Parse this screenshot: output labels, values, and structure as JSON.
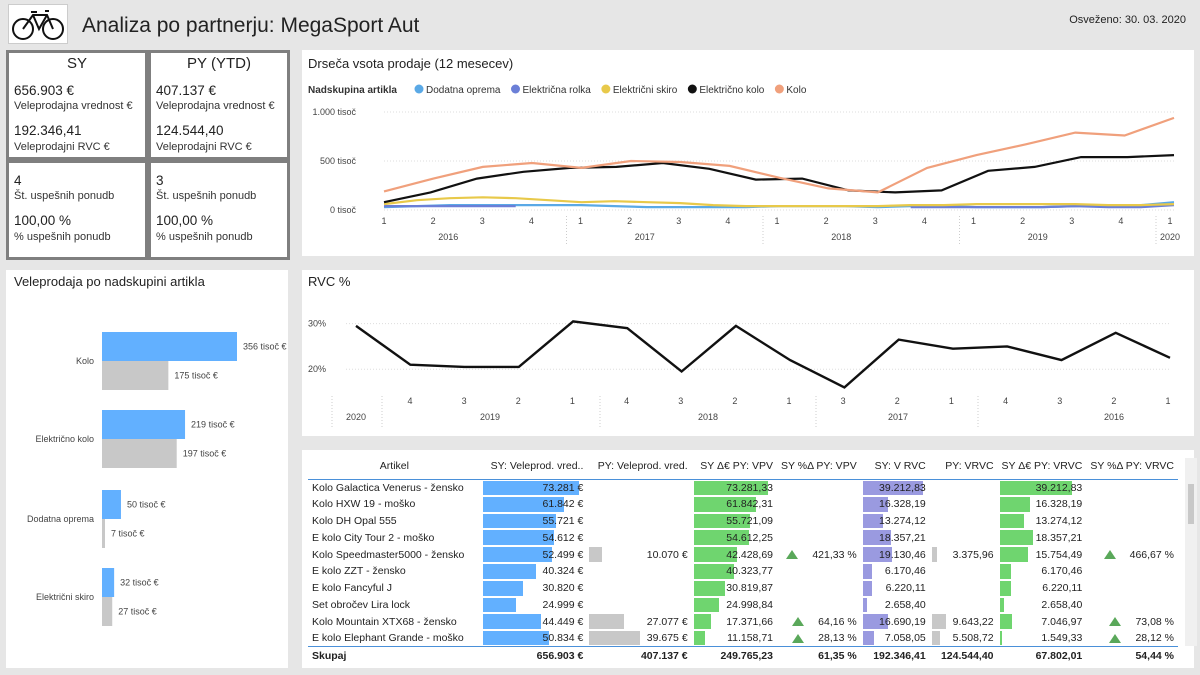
{
  "header": {
    "title": "Analiza po partnerju: MegaSport Aut",
    "refreshed": "Osveženo: 30. 03. 2020",
    "logo_icon": "bicycle-icon"
  },
  "kpis": [
    {
      "title": "SY",
      "v1": "656.903 €",
      "l1": "Veleprodajna vrednost €",
      "v2": "192.346,41",
      "l2": "Veleprodajni RVC €"
    },
    {
      "title": "PY (YTD)",
      "v1": "407.137 €",
      "l1": "Veleprodajna vrednost €",
      "v2": "124.544,40",
      "l2": "Veleprodajni RVC €"
    },
    {
      "v1": "4",
      "l1": "Št. uspešnih ponudb",
      "v2": "100,00 %",
      "l2": "% uspešnih ponudb"
    },
    {
      "v1": "3",
      "l1": "Št. uspešnih ponudb",
      "v2": "100,00 %",
      "l2": "% uspešnih ponudb"
    }
  ],
  "sales_chart": {
    "title": "Drseča vsota prodaje (12 mesecev)",
    "legend_title": "Nadskupina artikla",
    "y_ticks": [
      "1.000 tisoč",
      "500 tisoč",
      "0 tisoč"
    ],
    "quarters": [
      "1",
      "2",
      "3",
      "4",
      "1",
      "2",
      "3",
      "4",
      "1",
      "2",
      "3",
      "4",
      "1",
      "2",
      "3",
      "4",
      "1"
    ],
    "years": [
      "2016",
      "2017",
      "2018",
      "2019",
      "2020"
    ]
  },
  "chart_data": [
    {
      "type": "line",
      "title": "Drseča vsota prodaje (12 mesecev)",
      "ylim": [
        0,
        1000
      ],
      "series": [
        {
          "name": "Dodatna oprema",
          "color": "#5aa9e6",
          "values": [
            30,
            40,
            50,
            50,
            50,
            50,
            50,
            40,
            30,
            30,
            30,
            30,
            40,
            40,
            40,
            30,
            40,
            40,
            30,
            30,
            30,
            40,
            50,
            50,
            80
          ]
        },
        {
          "name": "Električna rolka",
          "color": "#6b7fd7",
          "values": [
            40,
            40,
            40,
            40,
            40,
            null,
            null,
            null,
            null,
            null,
            null,
            null,
            null,
            null,
            null,
            null,
            30,
            30,
            30,
            30,
            30,
            40,
            30,
            30,
            50
          ]
        },
        {
          "name": "Električni skiro",
          "color": "#e8c94a",
          "values": [
            60,
            100,
            120,
            130,
            120,
            100,
            80,
            90,
            80,
            70,
            50,
            40,
            40,
            40,
            40,
            40,
            50,
            50,
            60,
            60,
            60,
            60,
            50,
            50,
            60
          ]
        },
        {
          "name": "Električno kolo",
          "color": "#111111",
          "values": [
            80,
            180,
            320,
            390,
            430,
            440,
            480,
            420,
            310,
            320,
            200,
            180,
            200,
            400,
            440,
            540,
            540,
            560
          ]
        },
        {
          "name": "Kolo",
          "color": "#f0a07c",
          "values": [
            190,
            320,
            440,
            480,
            430,
            500,
            490,
            450,
            330,
            220,
            180,
            430,
            560,
            670,
            790,
            760,
            940
          ]
        }
      ]
    },
    {
      "type": "line",
      "title": "RVC %",
      "ylim": [
        15,
        33
      ],
      "series": [
        {
          "name": "RVC %",
          "color": "#111111",
          "values": [
            29.5,
            21,
            20.5,
            20.5,
            30.5,
            29,
            19.5,
            29.5,
            22,
            16,
            26.5,
            24.5,
            25,
            22,
            28,
            22.5
          ]
        }
      ]
    },
    {
      "type": "bar",
      "title": "Veleprodaja po nadskupini artikla",
      "categories": [
        "Kolo",
        "Električno kolo",
        "Dodatna oprema",
        "Električni skiro"
      ],
      "series": [
        {
          "name": "SY",
          "color": "#62b0ff",
          "values": [
            356,
            219,
            50,
            32
          ],
          "labels": [
            "356 tisoč €",
            "219 tisoč €",
            "50 tisoč €",
            "32 tisoč €"
          ]
        },
        {
          "name": "PY",
          "color": "#c8c8c8",
          "values": [
            175,
            197,
            7,
            27
          ],
          "labels": [
            "175 tisoč €",
            "197 tisoč €",
            "7 tisoč €",
            "27 tisoč €"
          ]
        }
      ]
    }
  ],
  "rvc_chart": {
    "title": "RVC %",
    "y_ticks": [
      "30%",
      "20%"
    ],
    "quarters": [
      "4",
      "3",
      "2",
      "1",
      "4",
      "3",
      "2",
      "1",
      "3",
      "2",
      "1",
      "4",
      "3",
      "2",
      "1"
    ],
    "years": [
      "2020",
      "2019",
      "2018",
      "2017",
      "2016"
    ]
  },
  "bar_chart": {
    "title": "Veleprodaja po nadskupini artikla"
  },
  "table": {
    "headers": [
      "Artikel",
      "SY: Veleprod. vred..",
      "PY: Veleprod. vred.",
      "SY Δ€ PY: VPV",
      "SY %Δ PY: VPV",
      "SY: V RVC",
      "PY: VRVC",
      "SY Δ€ PY: VRVC",
      "SY %Δ PY: VRVC"
    ],
    "rows": [
      {
        "name": "Kolo Galactica Venerus - žensko",
        "sy": "73.281 €",
        "sy_v": 73281,
        "py": "",
        "py_v": 0,
        "d": "73.281,33",
        "d_v": 73281,
        "p": "",
        "up": false,
        "rvc": "39.212,83",
        "rvc_v": 39212,
        "pyr": "",
        "pyr_v": 0,
        "dr": "39.212,83",
        "dr_v": 39212,
        "pr": "",
        "upr": false
      },
      {
        "name": "Kolo HXW 19 - moško",
        "sy": "61.842 €",
        "sy_v": 61842,
        "py": "",
        "py_v": 0,
        "d": "61.842,31",
        "d_v": 61842,
        "p": "",
        "up": false,
        "rvc": "16.328,19",
        "rvc_v": 16328,
        "pyr": "",
        "pyr_v": 0,
        "dr": "16.328,19",
        "dr_v": 16328,
        "pr": "",
        "upr": false
      },
      {
        "name": "Kolo DH Opal 555",
        "sy": "55.721 €",
        "sy_v": 55721,
        "py": "",
        "py_v": 0,
        "d": "55.721,09",
        "d_v": 55721,
        "p": "",
        "up": false,
        "rvc": "13.274,12",
        "rvc_v": 13274,
        "pyr": "",
        "pyr_v": 0,
        "dr": "13.274,12",
        "dr_v": 13274,
        "pr": "",
        "upr": false
      },
      {
        "name": "E kolo City Tour 2 - moško",
        "sy": "54.612 €",
        "sy_v": 54612,
        "py": "",
        "py_v": 0,
        "d": "54.612,25",
        "d_v": 54612,
        "p": "",
        "up": false,
        "rvc": "18.357,21",
        "rvc_v": 18357,
        "pyr": "",
        "pyr_v": 0,
        "dr": "18.357,21",
        "dr_v": 18357,
        "pr": "",
        "upr": false
      },
      {
        "name": "Kolo Speedmaster5000 - žensko",
        "sy": "52.499 €",
        "sy_v": 52499,
        "py": "10.070 €",
        "py_v": 10070,
        "d": "42.428,69",
        "d_v": 42428,
        "p": "421,33 %",
        "up": true,
        "rvc": "19.130,46",
        "rvc_v": 19130,
        "pyr": "3.375,96",
        "pyr_v": 3376,
        "dr": "15.754,49",
        "dr_v": 15754,
        "pr": "466,67 %",
        "upr": true
      },
      {
        "name": "E kolo ZZT - žensko",
        "sy": "40.324 €",
        "sy_v": 40324,
        "py": "",
        "py_v": 0,
        "d": "40.323,77",
        "d_v": 40323,
        "p": "",
        "up": false,
        "rvc": "6.170,46",
        "rvc_v": 6170,
        "pyr": "",
        "pyr_v": 0,
        "dr": "6.170,46",
        "dr_v": 6170,
        "pr": "",
        "upr": false
      },
      {
        "name": "E kolo Fancyful J",
        "sy": "30.820 €",
        "sy_v": 30820,
        "py": "",
        "py_v": 0,
        "d": "30.819,87",
        "d_v": 30819,
        "p": "",
        "up": false,
        "rvc": "6.220,11",
        "rvc_v": 6220,
        "pyr": "",
        "pyr_v": 0,
        "dr": "6.220,11",
        "dr_v": 6220,
        "pr": "",
        "upr": false
      },
      {
        "name": "Set obročev Lira lock",
        "sy": "24.999 €",
        "sy_v": 24999,
        "py": "",
        "py_v": 0,
        "d": "24.998,84",
        "d_v": 24998,
        "p": "",
        "up": false,
        "rvc": "2.658,40",
        "rvc_v": 2658,
        "pyr": "",
        "pyr_v": 0,
        "dr": "2.658,40",
        "dr_v": 2658,
        "pr": "",
        "upr": false
      },
      {
        "name": "Kolo Mountain XTX68 - žensko",
        "sy": "44.449 €",
        "sy_v": 44449,
        "py": "27.077 €",
        "py_v": 27077,
        "d": "17.371,66",
        "d_v": 17371,
        "p": "64,16 %",
        "up": true,
        "rvc": "16.690,19",
        "rvc_v": 16690,
        "pyr": "9.643,22",
        "pyr_v": 9643,
        "dr": "7.046,97",
        "dr_v": 7046,
        "pr": "73,08 %",
        "upr": true
      },
      {
        "name": "E kolo Elephant Grande - moško",
        "sy": "50.834 €",
        "sy_v": 50834,
        "py": "39.675 €",
        "py_v": 39675,
        "d": "11.158,71",
        "d_v": 11158,
        "p": "28,13 %",
        "up": true,
        "rvc": "7.058,05",
        "rvc_v": 7058,
        "pyr": "5.508,72",
        "pyr_v": 5508,
        "dr": "1.549,33",
        "dr_v": 1549,
        "pr": "28,12 %",
        "upr": true
      }
    ],
    "total": {
      "name": "Skupaj",
      "sy": "656.903 €",
      "py": "407.137 €",
      "d": "249.765,23",
      "p": "61,35 %",
      "rvc": "192.346,41",
      "pyr": "124.544,40",
      "dr": "67.802,01",
      "pr": "54,44 %"
    }
  }
}
